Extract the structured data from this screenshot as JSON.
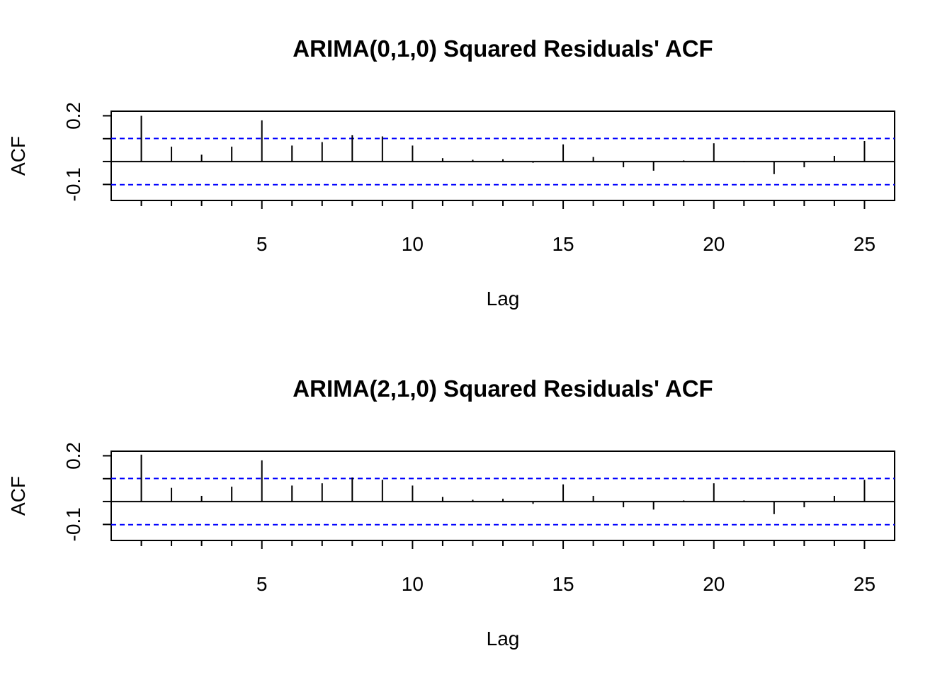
{
  "chart_data": [
    {
      "type": "bar",
      "title": "ARIMA(0,1,0) Squared Residuals' ACF",
      "xlabel": "Lag",
      "ylabel": "ACF",
      "x_ticks": [
        5,
        10,
        15,
        20,
        25
      ],
      "y_ticks": [
        -0.1,
        0.2
      ],
      "y_tick_labels": [
        "-0.1",
        "0.2"
      ],
      "xlim": [
        0,
        26
      ],
      "ylim": [
        -0.17,
        0.22
      ],
      "confidence_limits": [
        0.101,
        -0.101
      ],
      "zero_line": 0,
      "lags": [
        1,
        2,
        3,
        4,
        5,
        6,
        7,
        8,
        9,
        10,
        11,
        12,
        13,
        14,
        15,
        16,
        17,
        18,
        19,
        20,
        21,
        22,
        23,
        24,
        25
      ],
      "values": [
        0.2,
        0.065,
        0.03,
        0.065,
        0.18,
        0.07,
        0.085,
        0.115,
        0.11,
        0.07,
        0.015,
        0.008,
        0.01,
        -0.005,
        0.075,
        0.02,
        -0.025,
        -0.04,
        0.005,
        0.08,
        0.003,
        -0.055,
        -0.025,
        0.025,
        0.09
      ],
      "colors": {
        "bars": "#000000",
        "confidence": "#0000ff",
        "frame": "#000000"
      }
    },
    {
      "type": "bar",
      "title": "ARIMA(2,1,0) Squared Residuals' ACF",
      "xlabel": "Lag",
      "ylabel": "ACF",
      "x_ticks": [
        5,
        10,
        15,
        20,
        25
      ],
      "y_ticks": [
        -0.1,
        0.2
      ],
      "y_tick_labels": [
        "-0.1",
        "0.2"
      ],
      "xlim": [
        0,
        26
      ],
      "ylim": [
        -0.17,
        0.22
      ],
      "confidence_limits": [
        0.101,
        -0.101
      ],
      "zero_line": 0,
      "lags": [
        1,
        2,
        3,
        4,
        5,
        6,
        7,
        8,
        9,
        10,
        11,
        12,
        13,
        14,
        15,
        16,
        17,
        18,
        19,
        20,
        21,
        22,
        23,
        24,
        25
      ],
      "values": [
        0.205,
        0.06,
        0.025,
        0.065,
        0.18,
        0.07,
        0.08,
        0.105,
        0.095,
        0.07,
        0.02,
        0.008,
        0.012,
        -0.01,
        0.075,
        0.025,
        -0.025,
        -0.035,
        0.005,
        0.08,
        0.005,
        -0.055,
        -0.025,
        0.025,
        0.095
      ],
      "colors": {
        "bars": "#000000",
        "confidence": "#0000ff",
        "frame": "#000000"
      }
    }
  ]
}
